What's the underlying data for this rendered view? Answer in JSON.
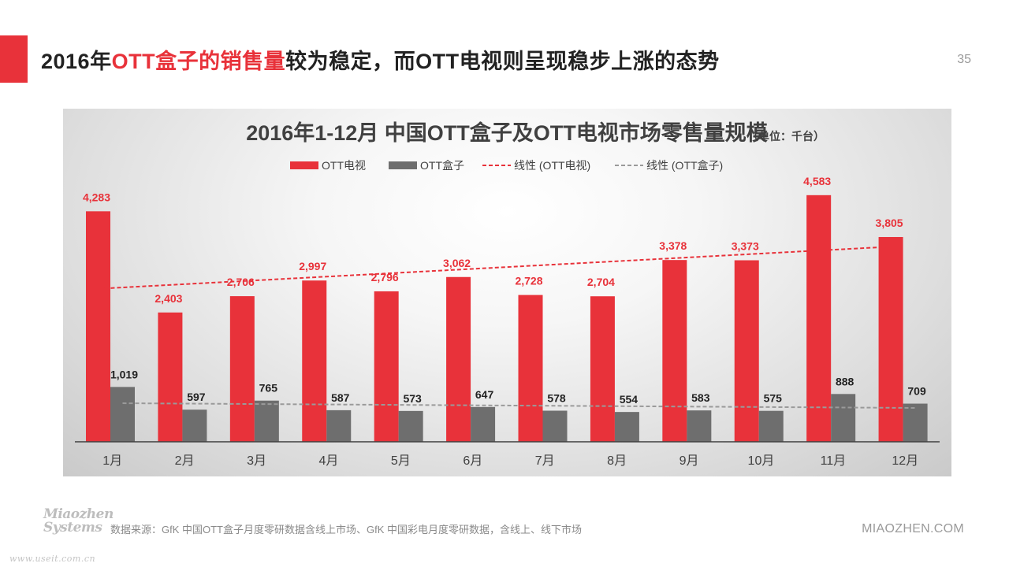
{
  "slide": {
    "title_parts": [
      {
        "text": "2016年",
        "highlight": false
      },
      {
        "text": "OTT盒子的销售量",
        "highlight": true
      },
      {
        "text": "较为稳定，而OTT电视则呈现稳步上涨的态势",
        "highlight": false
      }
    ],
    "page_number": "35",
    "accent_color": "#e8323a"
  },
  "footer": {
    "source": "数据来源：GfK 中国OTT盒子月度零研数据含线上市场、GfK 中国彩电月度零研数据，含线上、线下市场",
    "brand": "MIAOZHEN.COM",
    "logo_line1": "Miaozhen",
    "logo_line2": "Systems",
    "logo_url": "www.useit.com.cn"
  },
  "chart_data": {
    "type": "bar",
    "title": "2016年1-12月 中国OTT盒子及OTT电视市场零售量规模",
    "unit": "（单位：千台）",
    "categories": [
      "1月",
      "2月",
      "3月",
      "4月",
      "5月",
      "6月",
      "7月",
      "8月",
      "9月",
      "10月",
      "11月",
      "12月"
    ],
    "series": [
      {
        "name": "OTT电视",
        "color": "#e8323a",
        "values": [
          4283,
          2403,
          2706,
          2997,
          2796,
          3062,
          2728,
          2704,
          3378,
          3373,
          4583,
          3805
        ],
        "labels": [
          "4,283",
          "2,403",
          "2,706",
          "2,997",
          "2,796",
          "3,062",
          "2,728",
          "2,704",
          "3,378",
          "3,373",
          "4,583",
          "3,805"
        ]
      },
      {
        "name": "OTT盒子",
        "color": "#6e6e6e",
        "values": [
          1019,
          597,
          765,
          587,
          573,
          647,
          578,
          554,
          583,
          575,
          888,
          709
        ],
        "labels": [
          "1,019",
          "597",
          "765",
          "587",
          "573",
          "647",
          "578",
          "554",
          "583",
          "575",
          "888",
          "709"
        ]
      }
    ],
    "trendlines": [
      {
        "name": "线性 (OTT电视)",
        "color": "#e8323a",
        "style": "dashed",
        "of": "OTT电视"
      },
      {
        "name": "线性 (OTT盒子)",
        "color": "#9a9a9a",
        "style": "dashed",
        "of": "OTT盒子"
      }
    ],
    "ylim": [
      0,
      4800
    ],
    "grid": false,
    "legend_position": "top-center"
  }
}
